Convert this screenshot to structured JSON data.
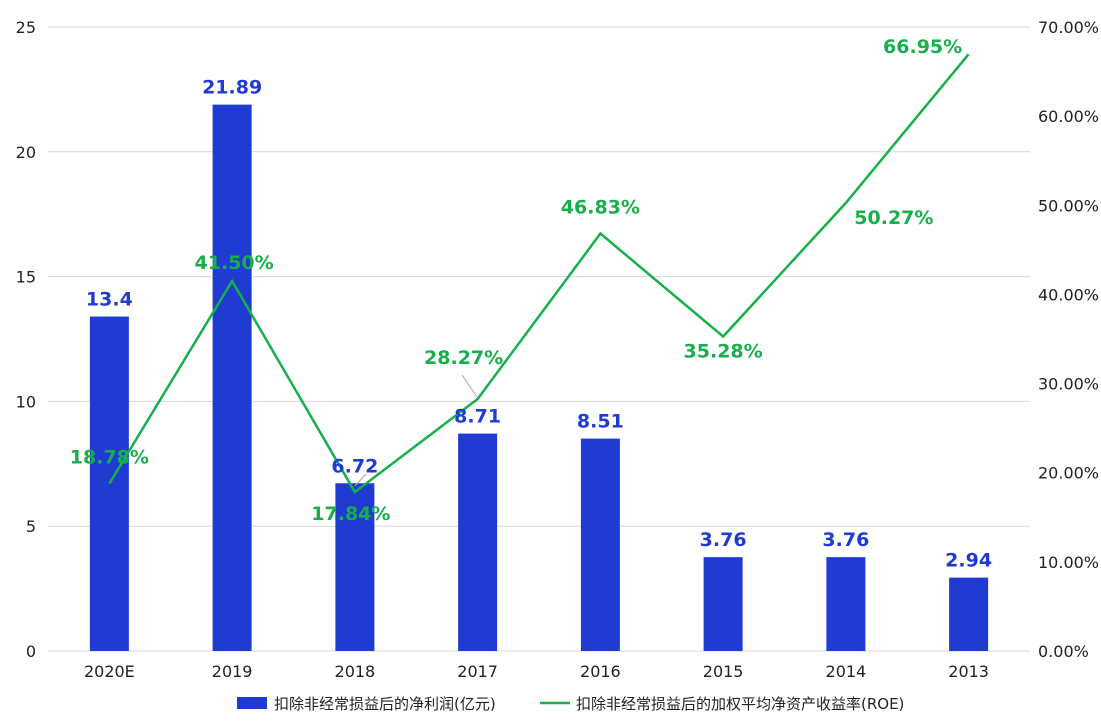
{
  "chart_data": {
    "type": "bar",
    "categories": [
      "2020E",
      "2019",
      "2018",
      "2017",
      "2016",
      "2015",
      "2014",
      "2013"
    ],
    "series": [
      {
        "name": "扣除非经常损益后的净利润(亿元)",
        "type": "bar",
        "axis": "left",
        "values": [
          13.4,
          21.89,
          6.72,
          8.71,
          8.51,
          3.76,
          3.76,
          2.94
        ],
        "labels": [
          "13.4",
          "21.89",
          "6.72",
          "8.71",
          "8.51",
          "3.76",
          "3.76",
          "2.94"
        ],
        "color": "#1f3bd1"
      },
      {
        "name": "扣除非经常损益后的加权平均净资产收益率(ROE)",
        "type": "line",
        "axis": "right",
        "values": [
          18.78,
          41.5,
          17.84,
          28.27,
          46.83,
          35.28,
          50.27,
          66.95
        ],
        "labels": [
          "18.78%",
          "41.50%",
          "17.84%",
          "28.27%",
          "46.83%",
          "35.28%",
          "50.27%",
          "66.95%"
        ],
        "color": "#16b04a"
      }
    ],
    "y_left": {
      "min": 0,
      "max": 25,
      "ticks": [
        "0",
        "5",
        "10",
        "15",
        "20",
        "25"
      ]
    },
    "y_right": {
      "min": 0,
      "max": 70,
      "ticks": [
        "0.00%",
        "10.00%",
        "20.00%",
        "30.00%",
        "40.00%",
        "50.00%",
        "60.00%",
        "70.00%"
      ]
    },
    "grid": true,
    "legend_position": "bottom",
    "colors": {
      "grid": "#d9d9d9",
      "axis_text": "#222222",
      "leader": "#a6a6a6"
    }
  }
}
